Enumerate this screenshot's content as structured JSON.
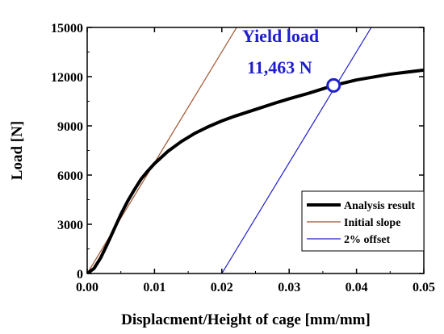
{
  "chart_data": {
    "type": "line",
    "xlabel": "Displacment/Height of cage [mm/mm]",
    "ylabel": "Load [N]",
    "xlim": [
      0,
      0.05
    ],
    "ylim": [
      0,
      15000
    ],
    "x_ticks": [
      {
        "value": 0.0,
        "label": "0.00"
      },
      {
        "value": 0.01,
        "label": "0.01"
      },
      {
        "value": 0.02,
        "label": "0.02"
      },
      {
        "value": 0.03,
        "label": "0.03"
      },
      {
        "value": 0.04,
        "label": "0.04"
      },
      {
        "value": 0.05,
        "label": "0.05"
      }
    ],
    "y_ticks": [
      {
        "value": 0,
        "label": "0"
      },
      {
        "value": 3000,
        "label": "3000"
      },
      {
        "value": 6000,
        "label": "6000"
      },
      {
        "value": 9000,
        "label": "9000"
      },
      {
        "value": 12000,
        "label": "12000"
      },
      {
        "value": 15000,
        "label": "15000"
      }
    ],
    "series": [
      {
        "name": "Analysis result",
        "color": "#000000",
        "points": [
          [
            0.0,
            0
          ],
          [
            0.001,
            300
          ],
          [
            0.002,
            950
          ],
          [
            0.003,
            1800
          ],
          [
            0.004,
            2700
          ],
          [
            0.005,
            3600
          ],
          [
            0.006,
            4400
          ],
          [
            0.007,
            5100
          ],
          [
            0.008,
            5750
          ],
          [
            0.009,
            6250
          ],
          [
            0.01,
            6700
          ],
          [
            0.012,
            7450
          ],
          [
            0.014,
            8050
          ],
          [
            0.016,
            8550
          ],
          [
            0.018,
            8950
          ],
          [
            0.02,
            9300
          ],
          [
            0.022,
            9600
          ],
          [
            0.025,
            10000
          ],
          [
            0.028,
            10400
          ],
          [
            0.03,
            10650
          ],
          [
            0.033,
            11000
          ],
          [
            0.0366,
            11463
          ],
          [
            0.04,
            11800
          ],
          [
            0.045,
            12150
          ],
          [
            0.05,
            12400
          ]
        ]
      },
      {
        "name": "Initial slope",
        "color": "#a0522d",
        "points": [
          [
            0.0,
            0
          ],
          [
            0.0222,
            15000
          ]
        ]
      },
      {
        "name": "2% offset",
        "color": "#1f1fcc",
        "points": [
          [
            0.02,
            0
          ],
          [
            0.0422,
            15000
          ]
        ]
      }
    ],
    "marker": {
      "x": 0.0366,
      "y": 11463,
      "color": "#1f1fcc"
    },
    "annotations": {
      "title_line": "Yield  load",
      "value_line": "11,463  N",
      "color": "#1f1fcc"
    },
    "legend": {
      "position": "bottom-right",
      "entries": [
        {
          "label": "Analysis result",
          "color": "#000000"
        },
        {
          "label": "Initial slope",
          "color": "#a0522d"
        },
        {
          "label": "2% offset",
          "color": "#1f1fcc"
        }
      ]
    },
    "grid": false
  }
}
